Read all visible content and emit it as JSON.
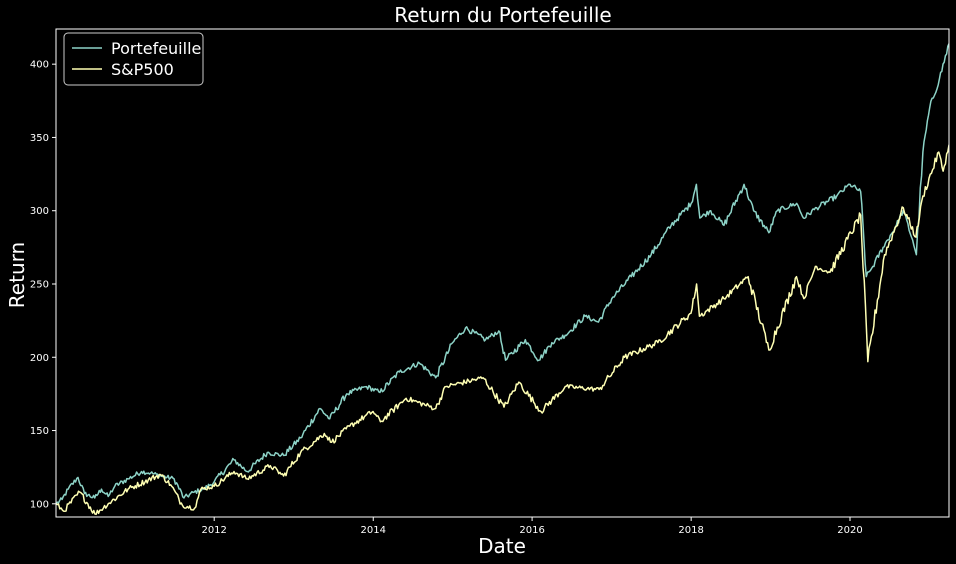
{
  "chart_data": {
    "type": "line",
    "title": "Return du Portefeuille",
    "xlabel": "Date",
    "ylabel": "Return",
    "xlim": [
      "2010-01-04",
      "2021-03-31"
    ],
    "ylim": [
      91,
      424
    ],
    "x_ticks": [
      "2012",
      "2014",
      "2016",
      "2018",
      "2020"
    ],
    "y_ticks": [
      100,
      150,
      200,
      250,
      300,
      350,
      400
    ],
    "grid": false,
    "legend_position": "top-left",
    "background": "#000000",
    "series": [
      {
        "name": "Portefeuille",
        "color": "#8dd3c7",
        "points": [
          [
            "2010-01-04",
            100
          ],
          [
            "2010-02-01",
            103
          ],
          [
            "2010-03-01",
            110
          ],
          [
            "2010-04-15",
            118
          ],
          [
            "2010-05-15",
            107
          ],
          [
            "2010-07-01",
            104
          ],
          [
            "2010-08-01",
            110
          ],
          [
            "2010-09-01",
            105
          ],
          [
            "2010-10-01",
            112
          ],
          [
            "2010-12-01",
            117
          ],
          [
            "2011-02-01",
            122
          ],
          [
            "2011-03-15",
            121
          ],
          [
            "2011-05-01",
            119
          ],
          [
            "2011-07-01",
            117
          ],
          [
            "2011-08-15",
            104
          ],
          [
            "2011-10-01",
            108
          ],
          [
            "2011-11-15",
            110
          ],
          [
            "2012-01-01",
            115
          ],
          [
            "2012-04-01",
            130
          ],
          [
            "2012-06-01",
            122
          ],
          [
            "2012-09-01",
            135
          ],
          [
            "2012-11-15",
            133
          ],
          [
            "2013-02-01",
            145
          ],
          [
            "2013-05-01",
            165
          ],
          [
            "2013-06-15",
            158
          ],
          [
            "2013-09-01",
            175
          ],
          [
            "2013-12-01",
            180
          ],
          [
            "2014-02-01",
            176
          ],
          [
            "2014-05-01",
            190
          ],
          [
            "2014-08-01",
            196
          ],
          [
            "2014-10-15",
            186
          ],
          [
            "2015-01-01",
            210
          ],
          [
            "2015-03-01",
            220
          ],
          [
            "2015-06-01",
            212
          ],
          [
            "2015-08-01",
            218
          ],
          [
            "2015-09-01",
            198
          ],
          [
            "2015-12-01",
            212
          ],
          [
            "2016-02-01",
            198
          ],
          [
            "2016-04-01",
            210
          ],
          [
            "2016-06-01",
            215
          ],
          [
            "2016-09-01",
            228
          ],
          [
            "2016-11-01",
            224
          ],
          [
            "2017-01-01",
            240
          ],
          [
            "2017-04-01",
            255
          ],
          [
            "2017-07-01",
            270
          ],
          [
            "2017-10-01",
            290
          ],
          [
            "2018-01-01",
            305
          ],
          [
            "2018-01-25",
            318
          ],
          [
            "2018-02-10",
            295
          ],
          [
            "2018-04-01",
            300
          ],
          [
            "2018-06-01",
            290
          ],
          [
            "2018-09-01",
            318
          ],
          [
            "2018-10-15",
            300
          ],
          [
            "2018-12-24",
            285
          ],
          [
            "2019-02-01",
            300
          ],
          [
            "2019-05-01",
            305
          ],
          [
            "2019-06-01",
            295
          ],
          [
            "2019-08-01",
            302
          ],
          [
            "2019-11-01",
            310
          ],
          [
            "2020-01-01",
            318
          ],
          [
            "2020-02-19",
            313
          ],
          [
            "2020-03-16",
            255
          ],
          [
            "2020-04-15",
            262
          ],
          [
            "2020-06-01",
            275
          ],
          [
            "2020-08-01",
            290
          ],
          [
            "2020-09-01",
            300
          ],
          [
            "2020-10-15",
            280
          ],
          [
            "2020-11-01",
            270
          ],
          [
            "2020-12-01",
            340
          ],
          [
            "2021-01-01",
            370
          ],
          [
            "2021-02-15",
            390
          ],
          [
            "2021-03-31",
            414
          ]
        ]
      },
      {
        "name": "S&P500",
        "color": "#ffffb3",
        "points": [
          [
            "2010-01-04",
            100
          ],
          [
            "2010-02-08",
            95
          ],
          [
            "2010-04-23",
            108
          ],
          [
            "2010-07-02",
            93
          ],
          [
            "2010-09-01",
            100
          ],
          [
            "2010-12-01",
            110
          ],
          [
            "2011-04-29",
            120
          ],
          [
            "2011-06-15",
            113
          ],
          [
            "2011-08-08",
            99
          ],
          [
            "2011-10-03",
            97
          ],
          [
            "2011-11-01",
            110
          ],
          [
            "2012-01-01",
            112
          ],
          [
            "2012-04-01",
            122
          ],
          [
            "2012-06-01",
            117
          ],
          [
            "2012-09-15",
            126
          ],
          [
            "2012-11-15",
            119
          ],
          [
            "2013-02-01",
            135
          ],
          [
            "2013-05-21",
            148
          ],
          [
            "2013-06-24",
            142
          ],
          [
            "2013-09-15",
            153
          ],
          [
            "2013-12-31",
            163
          ],
          [
            "2014-02-03",
            156
          ],
          [
            "2014-06-01",
            172
          ],
          [
            "2014-10-15",
            165
          ],
          [
            "2014-12-01",
            180
          ],
          [
            "2015-05-21",
            186
          ],
          [
            "2015-08-25",
            166
          ],
          [
            "2015-11-01",
            183
          ],
          [
            "2016-02-11",
            163
          ],
          [
            "2016-06-01",
            180
          ],
          [
            "2016-11-04",
            178
          ],
          [
            "2017-03-01",
            200
          ],
          [
            "2017-08-01",
            210
          ],
          [
            "2017-12-31",
            230
          ],
          [
            "2018-01-26",
            250
          ],
          [
            "2018-02-08",
            228
          ],
          [
            "2018-06-01",
            240
          ],
          [
            "2018-09-20",
            255
          ],
          [
            "2018-12-24",
            205
          ],
          [
            "2019-04-30",
            255
          ],
          [
            "2019-06-03",
            240
          ],
          [
            "2019-07-26",
            262
          ],
          [
            "2019-10-01",
            258
          ],
          [
            "2020-02-19",
            297
          ],
          [
            "2020-03-23",
            197
          ],
          [
            "2020-06-08",
            270
          ],
          [
            "2020-09-02",
            302
          ],
          [
            "2020-10-30",
            282
          ],
          [
            "2020-12-01",
            310
          ],
          [
            "2021-02-12",
            340
          ],
          [
            "2021-03-04",
            327
          ],
          [
            "2021-03-31",
            345
          ]
        ]
      }
    ]
  }
}
